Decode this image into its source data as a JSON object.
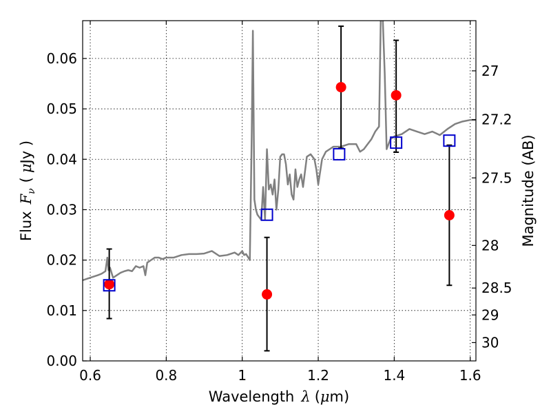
{
  "chart_data": {
    "type": "scatter",
    "xlabel": {
      "prefix": "Wavelength",
      "math": "λ",
      "unit_open": "(",
      "unit_mu": "μ",
      "unit_rest": "m)"
    },
    "ylabel": {
      "prefix": "Flux",
      "math": "F",
      "sub": "ν",
      "unit_open": "(",
      "unit_mu": "μ",
      "unit_rest": "Jy )"
    },
    "y2label": "Magnitude (AB)",
    "xlim": [
      0.58,
      1.615
    ],
    "ylim": [
      0.0,
      0.0675
    ],
    "grid": true,
    "x_ticks": [
      {
        "value": 0.6,
        "label": "0.6"
      },
      {
        "value": 0.8,
        "label": "0.8"
      },
      {
        "value": 1.0,
        "label": "1"
      },
      {
        "value": 1.2,
        "label": "1.2"
      },
      {
        "value": 1.4,
        "label": "1.4"
      },
      {
        "value": 1.6,
        "label": "1.6"
      }
    ],
    "y_ticks": [
      {
        "value": 0.0,
        "label": "0.00"
      },
      {
        "value": 0.01,
        "label": "0.01"
      },
      {
        "value": 0.02,
        "label": "0.02"
      },
      {
        "value": 0.03,
        "label": "0.03"
      },
      {
        "value": 0.04,
        "label": "0.04"
      },
      {
        "value": 0.05,
        "label": "0.05"
      },
      {
        "value": 0.06,
        "label": "0.06"
      }
    ],
    "y2_ticks": [
      {
        "value": 27,
        "label": "27"
      },
      {
        "value": 27.2,
        "label": "27.2"
      },
      {
        "value": 27.5,
        "label": "27.5"
      },
      {
        "value": 28,
        "label": "28"
      },
      {
        "value": 28.5,
        "label": "28.5"
      },
      {
        "value": 29,
        "label": "29"
      },
      {
        "value": 30,
        "label": "30"
      }
    ],
    "series": [
      {
        "kind": "line",
        "color": "#808080",
        "x": [
          0.58,
          0.6,
          0.62,
          0.63,
          0.64,
          0.645,
          0.648,
          0.652,
          0.66,
          0.67,
          0.68,
          0.69,
          0.7,
          0.71,
          0.72,
          0.73,
          0.74,
          0.745,
          0.75,
          0.76,
          0.77,
          0.78,
          0.79,
          0.8,
          0.82,
          0.84,
          0.86,
          0.88,
          0.9,
          0.92,
          0.94,
          0.96,
          0.98,
          0.99,
          1.0,
          1.005,
          1.01,
          1.02,
          1.025,
          1.028,
          1.032,
          1.036,
          1.04,
          1.05,
          1.055,
          1.06,
          1.065,
          1.07,
          1.075,
          1.08,
          1.085,
          1.09,
          1.095,
          1.1,
          1.105,
          1.11,
          1.115,
          1.12,
          1.125,
          1.13,
          1.135,
          1.14,
          1.145,
          1.15,
          1.155,
          1.16,
          1.17,
          1.18,
          1.19,
          1.195,
          1.2,
          1.21,
          1.22,
          1.23,
          1.24,
          1.26,
          1.28,
          1.3,
          1.31,
          1.32,
          1.33,
          1.34,
          1.35,
          1.36,
          1.365,
          1.37,
          1.375,
          1.38,
          1.39,
          1.4,
          1.42,
          1.44,
          1.46,
          1.48,
          1.5,
          1.52,
          1.54,
          1.56,
          1.58,
          1.6,
          1.615
        ],
        "y": [
          0.016,
          0.0165,
          0.017,
          0.0173,
          0.0178,
          0.0205,
          0.018,
          0.0185,
          0.0165,
          0.017,
          0.0175,
          0.0178,
          0.018,
          0.0178,
          0.0188,
          0.0185,
          0.0188,
          0.017,
          0.0195,
          0.02,
          0.0205,
          0.0205,
          0.0202,
          0.0205,
          0.0205,
          0.021,
          0.0212,
          0.0212,
          0.0213,
          0.0218,
          0.0208,
          0.021,
          0.0215,
          0.021,
          0.0218,
          0.021,
          0.0212,
          0.02,
          0.045,
          0.0655,
          0.032,
          0.03,
          0.029,
          0.028,
          0.0345,
          0.028,
          0.042,
          0.034,
          0.035,
          0.033,
          0.036,
          0.03,
          0.034,
          0.0405,
          0.041,
          0.041,
          0.039,
          0.035,
          0.037,
          0.033,
          0.032,
          0.038,
          0.0345,
          0.036,
          0.037,
          0.0345,
          0.0405,
          0.041,
          0.04,
          0.038,
          0.035,
          0.04,
          0.0415,
          0.042,
          0.0425,
          0.0425,
          0.043,
          0.043,
          0.0415,
          0.042,
          0.043,
          0.044,
          0.0455,
          0.0465,
          0.07,
          0.0675,
          0.057,
          0.042,
          0.044,
          0.0445,
          0.045,
          0.046,
          0.0455,
          0.045,
          0.0455,
          0.0448,
          0.046,
          0.047,
          0.0475,
          0.0478,
          0.0478
        ]
      },
      {
        "kind": "points",
        "marker": "circle",
        "color": "#ff0000",
        "x": [
          0.65,
          1.065,
          1.26,
          1.405,
          1.545
        ],
        "y": [
          0.0152,
          0.0132,
          0.0543,
          0.0527,
          0.0289
        ],
        "err_low": [
          0.0068,
          0.0112,
          0.0121,
          0.0113,
          0.0139
        ],
        "err_high": [
          0.007,
          0.0113,
          0.0121,
          0.0109,
          0.0139
        ]
      },
      {
        "kind": "points",
        "marker": "open-square",
        "color": "#0000cc",
        "x": [
          0.65,
          1.065,
          1.255,
          1.405,
          1.545
        ],
        "y": [
          0.015,
          0.029,
          0.041,
          0.0433,
          0.0437
        ]
      }
    ]
  }
}
